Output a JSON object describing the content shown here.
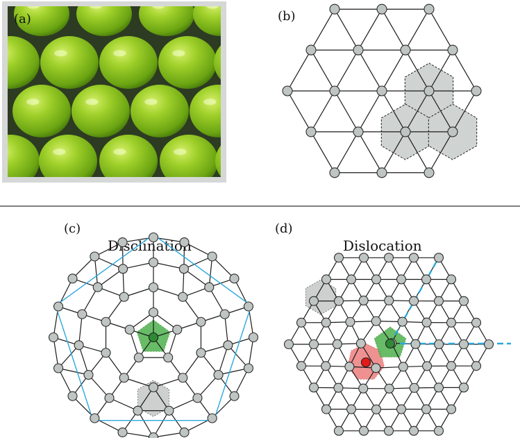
{
  "panels": {
    "a": {
      "label": "(a)"
    },
    "b": {
      "label": "(b)"
    },
    "c": {
      "label": "(c)",
      "title": "Disclination"
    },
    "d": {
      "label": "(d)",
      "title": "Dislocation"
    }
  },
  "colors": {
    "node": "#bfc5c2",
    "unit_cell": "#cfd3d1",
    "five_fold": "#58b557",
    "seven_fold": "#ee7e7e",
    "burgers_line": "#2aa7dd",
    "apple": "#8fc21f"
  }
}
